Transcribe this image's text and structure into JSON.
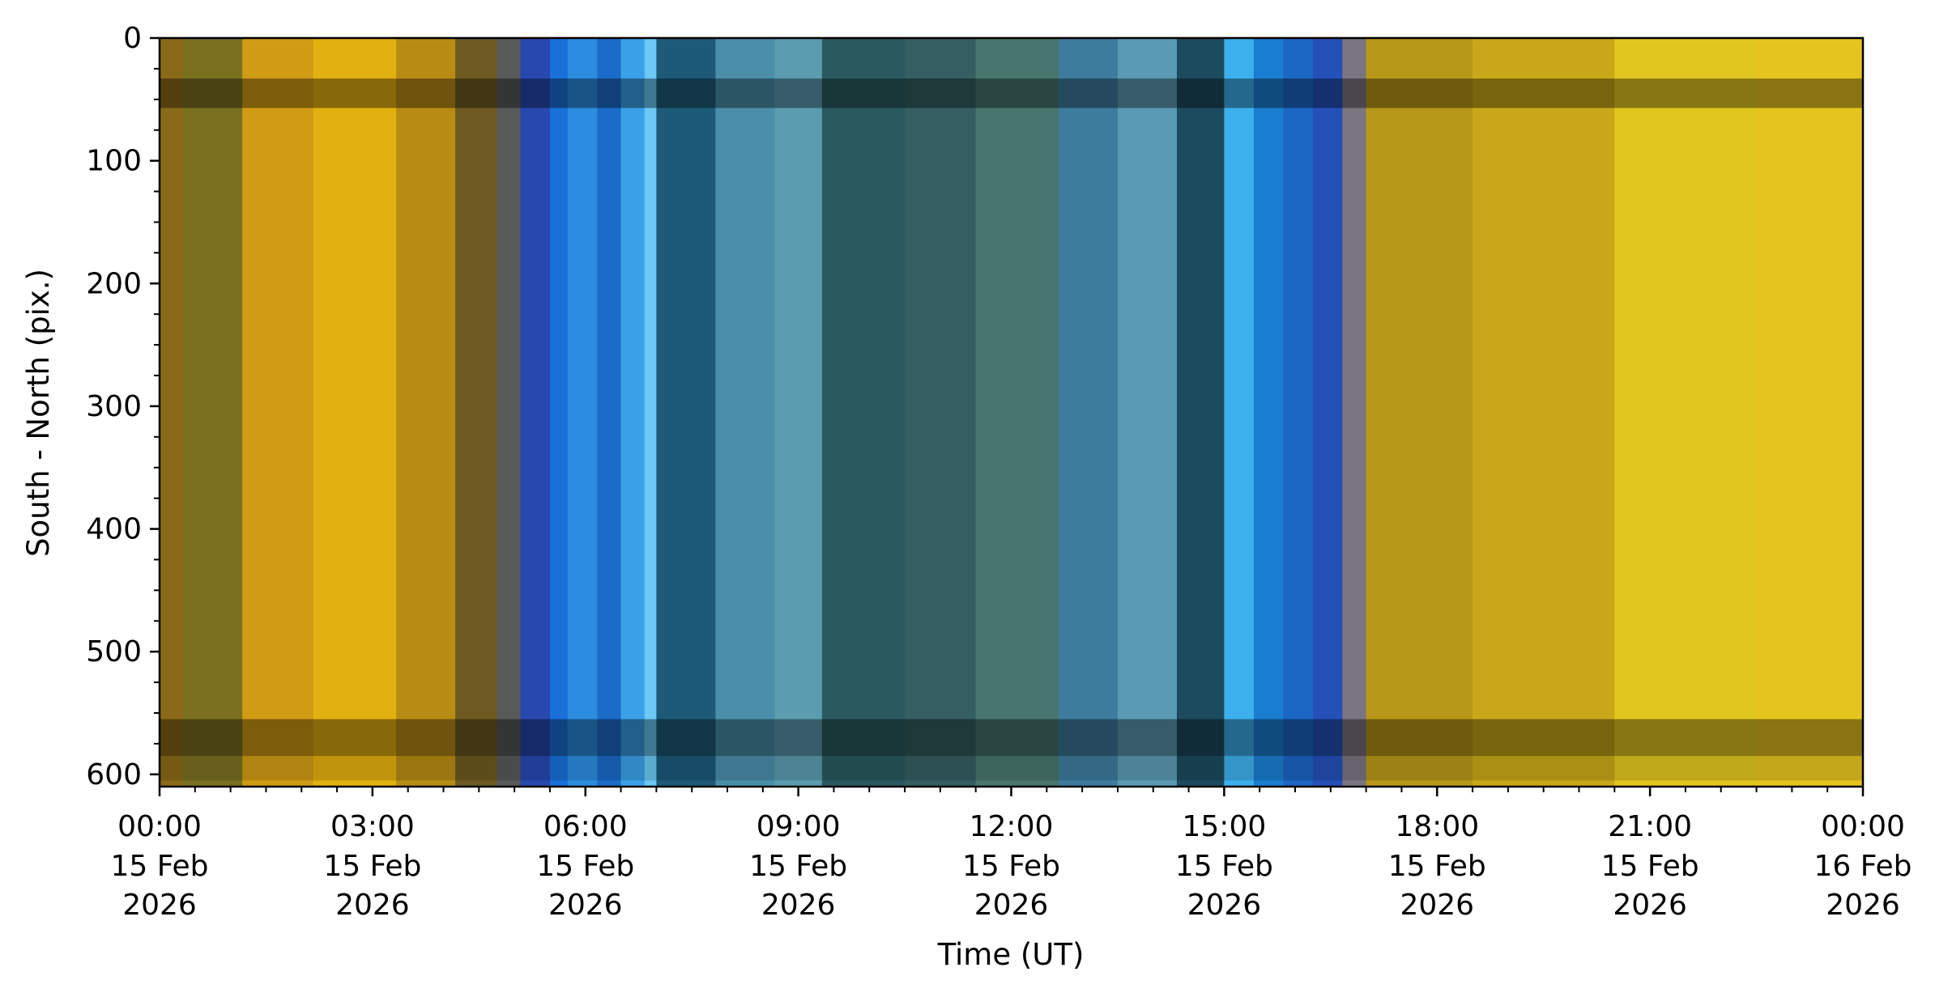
{
  "chart_data": {
    "type": "heatmap",
    "title": "",
    "xlabel": "Time (UT)",
    "ylabel": "South - North (pix.)",
    "x_range": [
      "2026-02-15 00:00",
      "2026-02-16 00:00"
    ],
    "ylim": [
      610,
      0
    ],
    "y_ticks": [
      0,
      100,
      200,
      300,
      400,
      500,
      600
    ],
    "x_ticks": [
      {
        "time": "00:00",
        "date": "15 Feb",
        "year": "2026"
      },
      {
        "time": "03:00",
        "date": "15 Feb",
        "year": "2026"
      },
      {
        "time": "06:00",
        "date": "15 Feb",
        "year": "2026"
      },
      {
        "time": "09:00",
        "date": "15 Feb",
        "year": "2026"
      },
      {
        "time": "12:00",
        "date": "15 Feb",
        "year": "2026"
      },
      {
        "time": "15:00",
        "date": "15 Feb",
        "year": "2026"
      },
      {
        "time": "18:00",
        "date": "15 Feb",
        "year": "2026"
      },
      {
        "time": "21:00",
        "date": "15 Feb",
        "year": "2026"
      },
      {
        "time": "00:00",
        "date": "16 Feb",
        "year": "2026"
      }
    ],
    "x_minor_ticks_per_major": 6,
    "y_minor_step": 25,
    "time_bands": [
      {
        "start": "00:00",
        "end": "00:20",
        "color": "#8a6a18"
      },
      {
        "start": "00:20",
        "end": "01:10",
        "color": "#7a7020"
      },
      {
        "start": "01:10",
        "end": "02:10",
        "color": "#d09c14"
      },
      {
        "start": "02:10",
        "end": "03:20",
        "color": "#e2b010"
      },
      {
        "start": "03:20",
        "end": "04:10",
        "color": "#b88c14"
      },
      {
        "start": "04:10",
        "end": "04:45",
        "color": "#6e5a20"
      },
      {
        "start": "04:45",
        "end": "05:05",
        "color": "#585a5a"
      },
      {
        "start": "05:05",
        "end": "05:30",
        "color": "#2848b0"
      },
      {
        "start": "05:30",
        "end": "05:45",
        "color": "#1870d8"
      },
      {
        "start": "05:45",
        "end": "06:10",
        "color": "#2c8ce0"
      },
      {
        "start": "06:10",
        "end": "06:30",
        "color": "#1a6cc8"
      },
      {
        "start": "06:30",
        "end": "06:50",
        "color": "#3aa0e8"
      },
      {
        "start": "06:50",
        "end": "07:00",
        "color": "#6cc8f4"
      },
      {
        "start": "07:00",
        "end": "07:50",
        "color": "#1c5a78"
      },
      {
        "start": "07:50",
        "end": "08:40",
        "color": "#4a8eaa"
      },
      {
        "start": "08:40",
        "end": "09:20",
        "color": "#5a9cb0"
      },
      {
        "start": "09:20",
        "end": "10:30",
        "color": "#2a5a60"
      },
      {
        "start": "10:30",
        "end": "11:30",
        "color": "#345e62"
      },
      {
        "start": "11:30",
        "end": "12:40",
        "color": "#48766e"
      },
      {
        "start": "12:40",
        "end": "13:30",
        "color": "#3e7c9e"
      },
      {
        "start": "13:30",
        "end": "14:20",
        "color": "#5a9ab4"
      },
      {
        "start": "14:20",
        "end": "15:00",
        "color": "#1c4a5e"
      },
      {
        "start": "15:00",
        "end": "15:25",
        "color": "#3cb0ec"
      },
      {
        "start": "15:25",
        "end": "15:50",
        "color": "#1a7ed0"
      },
      {
        "start": "15:50",
        "end": "16:15",
        "color": "#1c66c4"
      },
      {
        "start": "16:15",
        "end": "16:40",
        "color": "#2450b8"
      },
      {
        "start": "16:40",
        "end": "17:00",
        "color": "#7a7680"
      },
      {
        "start": "17:00",
        "end": "18:30",
        "color": "#b89818"
      },
      {
        "start": "18:30",
        "end": "20:30",
        "color": "#c8a818"
      },
      {
        "start": "20:30",
        "end": "22:30",
        "color": "#e2c620"
      },
      {
        "start": "22:30",
        "end": "24:00",
        "color": "#e6c41e"
      }
    ],
    "dark_rows": [
      {
        "y0": 33,
        "y1": 57,
        "opacity": 0.4
      },
      {
        "y0": 555,
        "y1": 585,
        "opacity": 0.4
      },
      {
        "y0": 585,
        "y1": 605,
        "opacity": 0.15
      }
    ]
  }
}
